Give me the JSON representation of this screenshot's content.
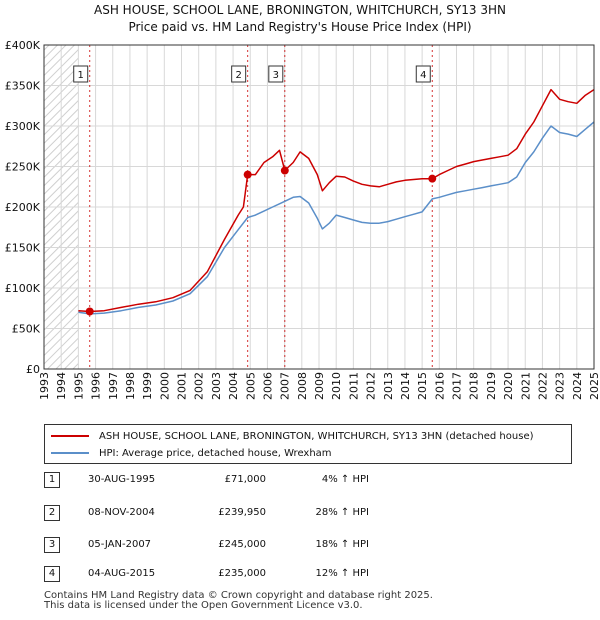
{
  "chart_data": {
    "type": "line",
    "title": "ASH HOUSE, SCHOOL LANE, BRONINGTON, WHITCHURCH, SY13 3HN",
    "subtitle": "Price paid vs. HM Land Registry's House Price Index (HPI)",
    "xlabel": "",
    "ylabel": "",
    "xlim": [
      1993,
      2025
    ],
    "ylim": [
      0,
      400000
    ],
    "grid": true,
    "y_ticks": [
      0,
      50000,
      100000,
      150000,
      200000,
      250000,
      300000,
      350000,
      400000
    ],
    "y_tick_labels": [
      "£0",
      "£50K",
      "£100K",
      "£150K",
      "£200K",
      "£250K",
      "£300K",
      "£350K",
      "£400K"
    ],
    "x_ticks": [
      1993,
      1994,
      1995,
      1996,
      1997,
      1998,
      1999,
      2000,
      2001,
      2002,
      2003,
      2004,
      2005,
      2006,
      2007,
      2008,
      2009,
      2010,
      2011,
      2012,
      2013,
      2014,
      2015,
      2016,
      2017,
      2018,
      2019,
      2020,
      2021,
      2022,
      2023,
      2024,
      2025
    ],
    "x_tick_labels": [
      "1993",
      "1994",
      "1995",
      "1996",
      "1997",
      "1998",
      "1999",
      "2000",
      "2001",
      "2002",
      "2003",
      "2004",
      "2005",
      "2006",
      "2007",
      "2008",
      "2009",
      "2010",
      "2011",
      "2012",
      "2013",
      "2014",
      "2015",
      "2016",
      "2017",
      "2018",
      "2019",
      "2020",
      "2021",
      "2022",
      "2023",
      "2024",
      "2025"
    ],
    "hatched_before": 1995.0,
    "series": [
      {
        "name": "ASH HOUSE, SCHOOL LANE, BRONINGTON, WHITCHURCH, SY13 3HN (detached house)",
        "color": "#cc0000",
        "points": [
          [
            1995.0,
            72000
          ],
          [
            1995.66,
            71000
          ],
          [
            1996.5,
            72000
          ],
          [
            1997.5,
            76000
          ],
          [
            1998.5,
            80000
          ],
          [
            1999.5,
            83000
          ],
          [
            2000.5,
            88000
          ],
          [
            2001.5,
            97000
          ],
          [
            2002.5,
            120000
          ],
          [
            2003.5,
            160000
          ],
          [
            2004.3,
            190000
          ],
          [
            2004.6,
            200000
          ],
          [
            2004.85,
            239950
          ],
          [
            2005.3,
            240000
          ],
          [
            2005.8,
            255000
          ],
          [
            2006.3,
            262000
          ],
          [
            2006.7,
            270000
          ],
          [
            2007.01,
            245000
          ],
          [
            2007.5,
            255000
          ],
          [
            2007.9,
            268000
          ],
          [
            2008.4,
            260000
          ],
          [
            2008.9,
            240000
          ],
          [
            2009.2,
            220000
          ],
          [
            2009.6,
            230000
          ],
          [
            2010.0,
            238000
          ],
          [
            2010.5,
            237000
          ],
          [
            2011.0,
            232000
          ],
          [
            2011.5,
            228000
          ],
          [
            2012.0,
            226000
          ],
          [
            2012.5,
            225000
          ],
          [
            2013.0,
            228000
          ],
          [
            2013.5,
            231000
          ],
          [
            2014.0,
            233000
          ],
          [
            2014.5,
            234000
          ],
          [
            2015.0,
            235000
          ],
          [
            2015.59,
            235000
          ],
          [
            2016.0,
            240000
          ],
          [
            2016.5,
            245000
          ],
          [
            2017.0,
            250000
          ],
          [
            2017.5,
            253000
          ],
          [
            2018.0,
            256000
          ],
          [
            2018.5,
            258000
          ],
          [
            2019.0,
            260000
          ],
          [
            2019.5,
            262000
          ],
          [
            2020.0,
            264000
          ],
          [
            2020.5,
            272000
          ],
          [
            2021.0,
            290000
          ],
          [
            2021.5,
            305000
          ],
          [
            2022.0,
            325000
          ],
          [
            2022.5,
            345000
          ],
          [
            2023.0,
            333000
          ],
          [
            2023.5,
            330000
          ],
          [
            2024.0,
            328000
          ],
          [
            2024.5,
            338000
          ],
          [
            2025.0,
            345000
          ]
        ]
      },
      {
        "name": "HPI: Average price, detached house, Wrexham",
        "color": "#5b8fc9",
        "points": [
          [
            1995.0,
            70000
          ],
          [
            1995.66,
            68000
          ],
          [
            1996.5,
            69000
          ],
          [
            1997.5,
            72000
          ],
          [
            1998.5,
            76000
          ],
          [
            1999.5,
            79000
          ],
          [
            2000.5,
            84000
          ],
          [
            2001.5,
            93000
          ],
          [
            2002.5,
            114000
          ],
          [
            2003.5,
            150000
          ],
          [
            2004.3,
            172000
          ],
          [
            2004.85,
            187000
          ],
          [
            2005.3,
            190000
          ],
          [
            2005.8,
            195000
          ],
          [
            2006.3,
            200000
          ],
          [
            2006.7,
            204000
          ],
          [
            2007.01,
            207000
          ],
          [
            2007.5,
            212000
          ],
          [
            2007.9,
            213000
          ],
          [
            2008.4,
            205000
          ],
          [
            2008.9,
            186000
          ],
          [
            2009.2,
            173000
          ],
          [
            2009.6,
            180000
          ],
          [
            2010.0,
            190000
          ],
          [
            2010.5,
            187000
          ],
          [
            2011.0,
            184000
          ],
          [
            2011.5,
            181000
          ],
          [
            2012.0,
            180000
          ],
          [
            2012.5,
            180000
          ],
          [
            2013.0,
            182000
          ],
          [
            2013.5,
            185000
          ],
          [
            2014.0,
            188000
          ],
          [
            2014.5,
            191000
          ],
          [
            2015.0,
            194000
          ],
          [
            2015.59,
            210000
          ],
          [
            2016.0,
            212000
          ],
          [
            2016.5,
            215000
          ],
          [
            2017.0,
            218000
          ],
          [
            2017.5,
            220000
          ],
          [
            2018.0,
            222000
          ],
          [
            2018.5,
            224000
          ],
          [
            2019.0,
            226000
          ],
          [
            2019.5,
            228000
          ],
          [
            2020.0,
            230000
          ],
          [
            2020.5,
            237000
          ],
          [
            2021.0,
            255000
          ],
          [
            2021.5,
            268000
          ],
          [
            2022.0,
            285000
          ],
          [
            2022.5,
            300000
          ],
          [
            2023.0,
            292000
          ],
          [
            2023.5,
            290000
          ],
          [
            2024.0,
            287000
          ],
          [
            2024.5,
            296000
          ],
          [
            2025.0,
            305000
          ]
        ]
      }
    ],
    "markers": [
      {
        "label": "1",
        "x": 1995.66,
        "y": 71000
      },
      {
        "label": "2",
        "x": 2004.85,
        "y": 239950
      },
      {
        "label": "3",
        "x": 2007.01,
        "y": 245000
      },
      {
        "label": "4",
        "x": 2015.59,
        "y": 235000
      }
    ]
  },
  "title": {
    "line1": "ASH HOUSE, SCHOOL LANE, BRONINGTON, WHITCHURCH, SY13 3HN",
    "line2": "Price paid vs. HM Land Registry's House Price Index (HPI)"
  },
  "legend": {
    "property_label": "ASH HOUSE, SCHOOL LANE, BRONINGTON, WHITCHURCH, SY13 3HN (detached house)",
    "property_color": "#cc0000",
    "hpi_label": "HPI: Average price, detached house, Wrexham",
    "hpi_color": "#5b8fc9"
  },
  "transactions": [
    {
      "num": "1",
      "date": "30-AUG-1995",
      "price": "£71,000",
      "hpi": "4% ↑ HPI"
    },
    {
      "num": "2",
      "date": "08-NOV-2004",
      "price": "£239,950",
      "hpi": "28% ↑ HPI"
    },
    {
      "num": "3",
      "date": "05-JAN-2007",
      "price": "£245,000",
      "hpi": "18% ↑ HPI"
    },
    {
      "num": "4",
      "date": "04-AUG-2015",
      "price": "£235,000",
      "hpi": "12% ↑ HPI"
    }
  ],
  "footer": {
    "line1": "Contains HM Land Registry data © Crown copyright and database right 2025.",
    "line2": "This data is licensed under the Open Government Licence v3.0."
  },
  "colors": {
    "grid": "#d8d8d8",
    "marker_line": "#cc0000",
    "axis": "#333333"
  }
}
